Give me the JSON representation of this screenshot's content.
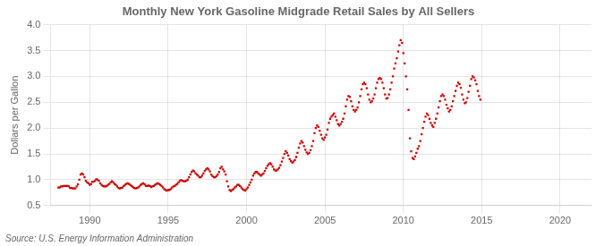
{
  "chart_data": {
    "type": "scatter",
    "title": "Monthly New York Gasoline Midgrade Retail Sales by All Sellers",
    "ylabel": "Dollars per Gallon",
    "annotations": [
      "Source: U.S. Energy Information Administration"
    ],
    "color": "#cc0000",
    "marker": "square",
    "grid": true,
    "xlim": [
      1987.5,
      2022
    ],
    "ylim": [
      0.5,
      4.0
    ],
    "xticks": [
      1990,
      1995,
      2000,
      2005,
      2010,
      2015,
      2020
    ],
    "yticks": [
      0.5,
      {
        "value": 1.0,
        "label": "1.0"
      },
      1.5,
      {
        "value": 2.0,
        "label": "2.0"
      },
      2.5,
      {
        "value": 3.0,
        "label": "3.0"
      },
      3.5,
      {
        "value": 4.0,
        "label": "4.0"
      }
    ],
    "x": [
      1988,
      1988.0833333333333,
      1988.1666666666667,
      1988.25,
      1988.3333333333333,
      1988.4166666666667,
      1988.5,
      1988.5833333333333,
      1988.6666666666667,
      1988.75,
      1988.8333333333333,
      1988.9166666666667,
      1989,
      1989.0833333333333,
      1989.1666666666667,
      1989.25,
      1989.3333333333333,
      1989.4166666666667,
      1989.5,
      1989.5833333333333,
      1989.6666666666667,
      1989.75,
      1989.8333333333333,
      1989.9166666666667,
      1990,
      1990.0833333333333,
      1990.1666666666667,
      1990.25,
      1990.3333333333333,
      1990.4166666666667,
      1990.5,
      1990.5833333333333,
      1990.6666666666667,
      1990.75,
      1990.8333333333333,
      1990.9166666666667,
      1991,
      1991.0833333333333,
      1991.1666666666667,
      1991.25,
      1991.3333333333333,
      1991.4166666666667,
      1991.5,
      1991.5833333333333,
      1991.6666666666667,
      1991.75,
      1991.8333333333333,
      1991.9166666666667,
      1992,
      1992.0833333333333,
      1992.1666666666667,
      1992.25,
      1992.3333333333333,
      1992.4166666666667,
      1992.5,
      1992.5833333333333,
      1992.6666666666667,
      1992.75,
      1992.8333333333333,
      1992.9166666666667,
      1993,
      1993.0833333333333,
      1993.1666666666667,
      1993.25,
      1993.3333333333333,
      1993.4166666666667,
      1993.5,
      1993.5833333333333,
      1993.6666666666667,
      1993.75,
      1993.8333333333333,
      1993.9166666666667,
      1994,
      1994.0833333333333,
      1994.1666666666667,
      1994.25,
      1994.3333333333333,
      1994.4166666666667,
      1994.5,
      1994.5833333333333,
      1994.6666666666667,
      1994.75,
      1994.8333333333333,
      1994.9166666666667,
      1995,
      1995.0833333333333,
      1995.1666666666667,
      1995.25,
      1995.3333333333333,
      1995.4166666666667,
      1995.5,
      1995.5833333333333,
      1995.6666666666667,
      1995.75,
      1995.8333333333333,
      1995.9166666666667,
      1996,
      1996.0833333333333,
      1996.1666666666667,
      1996.25,
      1996.3333333333333,
      1996.4166666666667,
      1996.5,
      1996.5833333333333,
      1996.6666666666667,
      1996.75,
      1996.8333333333333,
      1996.9166666666667,
      1997,
      1997.0833333333333,
      1997.1666666666667,
      1997.25,
      1997.3333333333333,
      1997.4166666666667,
      1997.5,
      1997.5833333333333,
      1997.6666666666667,
      1997.75,
      1997.8333333333333,
      1997.9166666666667,
      1998,
      1998.0833333333333,
      1998.1666666666667,
      1998.25,
      1998.3333333333333,
      1998.4166666666667,
      1998.5,
      1998.5833333333333,
      1998.6666666666667,
      1998.75,
      1998.8333333333333,
      1998.9166666666667,
      1999,
      1999.0833333333333,
      1999.1666666666667,
      1999.25,
      1999.3333333333333,
      1999.4166666666667,
      1999.5,
      1999.5833333333333,
      1999.6666666666667,
      1999.75,
      1999.8333333333333,
      1999.9166666666667,
      2000,
      2000.0833333333333,
      2000.1666666666667,
      2000.25,
      2000.3333333333333,
      2000.4166666666667,
      2000.5,
      2000.5833333333333,
      2000.6666666666667,
      2000.75,
      2000.8333333333333,
      2000.9166666666667,
      2001,
      2001.0833333333333,
      2001.1666666666667,
      2001.25,
      2001.3333333333333,
      2001.4166666666667,
      2001.5,
      2001.5833333333333,
      2001.6666666666667,
      2001.75,
      2001.8333333333333,
      2001.9166666666667,
      2002,
      2002.0833333333333,
      2002.1666666666667,
      2002.25,
      2002.3333333333333,
      2002.4166666666667,
      2002.5,
      2002.5833333333333,
      2002.6666666666667,
      2002.75,
      2002.8333333333333,
      2002.9166666666667,
      2003,
      2003.0833333333333,
      2003.1666666666667,
      2003.25,
      2003.3333333333333,
      2003.4166666666667,
      2003.5,
      2003.5833333333333,
      2003.6666666666667,
      2003.75,
      2003.8333333333333,
      2003.9166666666667,
      2004,
      2004.0833333333333,
      2004.1666666666667,
      2004.25,
      2004.3333333333333,
      2004.4166666666667,
      2004.5,
      2004.5833333333333,
      2004.6666666666667,
      2004.75,
      2004.8333333333333,
      2004.9166666666667,
      2005,
      2005.0833333333333,
      2005.1666666666667,
      2005.25,
      2005.3333333333333,
      2005.4166666666667,
      2005.5,
      2005.5833333333333,
      2005.6666666666667,
      2005.75,
      2005.8333333333333,
      2005.9166666666667,
      2006,
      2006.0833333333333,
      2006.1666666666667,
      2006.25,
      2006.3333333333333,
      2006.4166666666667,
      2006.5,
      2006.5833333333333,
      2006.6666666666667,
      2006.75,
      2006.8333333333333,
      2006.9166666666667,
      2007,
      2007.0833333333333,
      2007.1666666666667,
      2007.25,
      2007.3333333333333,
      2007.4166666666667,
      2007.5,
      2007.5833333333333,
      2007.6666666666667,
      2007.75,
      2007.8333333333333,
      2007.9166666666667,
      2008,
      2008.0833333333333,
      2008.1666666666667,
      2008.25,
      2008.3333333333333,
      2008.4166666666667,
      2008.5,
      2008.5833333333333,
      2008.6666666666667,
      2008.75,
      2008.8333333333333,
      2008.9166666666667,
      2009,
      2009.0833333333333,
      2009.1666666666667,
      2009.25,
      2009.3333333333333,
      2009.4166666666667,
      2009.5,
      2009.5833333333333,
      2009.6666666666667,
      2009.75,
      2009.8333333333333,
      2009.9166666666667,
      2010,
      2010.0833333333333,
      2010.1666666666667,
      2010.25,
      2010.3333333333333,
      2010.4166666666667,
      2010.5,
      2010.5833333333333,
      2010.6666666666667,
      2010.75,
      2010.8333333333333,
      2010.9166666666667,
      2011,
      2011.0833333333333,
      2011.1666666666667,
      2011.25,
      2011.3333333333333,
      2011.4166666666667,
      2011.5,
      2011.5833333333333,
      2011.6666666666667,
      2011.75,
      2011.8333333333333,
      2011.9166666666667,
      2012,
      2012.0833333333333,
      2012.1666666666667,
      2012.25,
      2012.3333333333333,
      2012.4166666666667,
      2012.5,
      2012.5833333333333,
      2012.6666666666667,
      2012.75,
      2012.8333333333333,
      2012.9166666666667,
      2013,
      2013.0833333333333,
      2013.1666666666667,
      2013.25,
      2013.3333333333333,
      2013.4166666666667,
      2013.5,
      2013.5833333333333,
      2013.6666666666667,
      2013.75,
      2013.8333333333333,
      2013.9166666666667,
      2014,
      2014.0833333333333,
      2014.1666666666667,
      2014.25,
      2014.3333333333333,
      2014.4166666666667,
      2014.5,
      2014.5833333333333,
      2014.6666666666667,
      2014.75,
      2014.8333333333333,
      2014.9166666666667
    ],
    "values": [
      0.85,
      0.85,
      0.87,
      0.87,
      0.88,
      0.88,
      0.88,
      0.88,
      0.87,
      0.84,
      0.84,
      0.83,
      0.83,
      0.83,
      0.87,
      0.91,
      1.0,
      1.1,
      1.12,
      1.1,
      1.05,
      0.98,
      0.95,
      0.93,
      0.9,
      0.92,
      0.96,
      0.96,
      0.98,
      1.01,
      1.0,
      0.98,
      0.93,
      0.9,
      0.88,
      0.87,
      0.87,
      0.88,
      0.9,
      0.92,
      0.95,
      0.97,
      0.95,
      0.92,
      0.9,
      0.87,
      0.84,
      0.83,
      0.84,
      0.85,
      0.88,
      0.9,
      0.92,
      0.93,
      0.92,
      0.9,
      0.88,
      0.86,
      0.84,
      0.83,
      0.84,
      0.85,
      0.87,
      0.9,
      0.92,
      0.93,
      0.91,
      0.88,
      0.88,
      0.89,
      0.88,
      0.86,
      0.87,
      0.88,
      0.9,
      0.92,
      0.93,
      0.92,
      0.9,
      0.88,
      0.85,
      0.82,
      0.8,
      0.79,
      0.8,
      0.8,
      0.82,
      0.85,
      0.87,
      0.88,
      0.9,
      0.92,
      0.95,
      0.98,
      0.99,
      0.98,
      0.97,
      0.97,
      0.98,
      1.0,
      1.05,
      1.1,
      1.15,
      1.18,
      1.16,
      1.12,
      1.1,
      1.08,
      1.05,
      1.05,
      1.08,
      1.12,
      1.17,
      1.2,
      1.22,
      1.2,
      1.16,
      1.1,
      1.07,
      1.05,
      1.05,
      1.07,
      1.1,
      1.15,
      1.22,
      1.25,
      1.2,
      1.16,
      1.1,
      0.97,
      0.87,
      0.8,
      0.78,
      0.8,
      0.82,
      0.85,
      0.87,
      0.9,
      0.9,
      0.88,
      0.85,
      0.82,
      0.8,
      0.79,
      0.82,
      0.85,
      0.9,
      0.95,
      1.0,
      1.08,
      1.12,
      1.15,
      1.15,
      1.12,
      1.1,
      1.08,
      1.1,
      1.12,
      1.17,
      1.22,
      1.27,
      1.3,
      1.32,
      1.3,
      1.25,
      1.2,
      1.18,
      1.18,
      1.2,
      1.23,
      1.28,
      1.35,
      1.42,
      1.5,
      1.55,
      1.52,
      1.47,
      1.4,
      1.36,
      1.33,
      1.35,
      1.38,
      1.44,
      1.52,
      1.62,
      1.7,
      1.75,
      1.72,
      1.65,
      1.58,
      1.53,
      1.5,
      1.52,
      1.57,
      1.65,
      1.75,
      1.9,
      2.0,
      2.05,
      2.02,
      1.95,
      1.87,
      1.8,
      1.77,
      1.82,
      1.87,
      1.97,
      2.1,
      2.18,
      2.22,
      2.25,
      2.28,
      2.22,
      2.15,
      2.08,
      2.05,
      2.08,
      2.12,
      2.18,
      2.28,
      2.42,
      2.55,
      2.62,
      2.6,
      2.52,
      2.42,
      2.35,
      2.32,
      2.35,
      2.4,
      2.5,
      2.62,
      2.75,
      2.85,
      2.88,
      2.85,
      2.77,
      2.65,
      2.55,
      2.5,
      2.52,
      2.57,
      2.65,
      2.77,
      2.88,
      2.95,
      2.97,
      2.95,
      2.88,
      2.77,
      2.65,
      2.57,
      2.58,
      2.65,
      2.75,
      2.88,
      3.0,
      3.15,
      3.25,
      3.35,
      3.48,
      3.6,
      3.7,
      3.65,
      3.45,
      3.25,
      3.0,
      2.75,
      2.35,
      1.8,
      1.55,
      1.42,
      1.4,
      1.45,
      1.52,
      1.6,
      1.65,
      1.75,
      1.88,
      2.0,
      2.12,
      2.22,
      2.28,
      2.25,
      2.18,
      2.1,
      2.05,
      2.02,
      2.1,
      2.18,
      2.28,
      2.4,
      2.52,
      2.62,
      2.65,
      2.62,
      2.55,
      2.45,
      2.38,
      2.32,
      2.35,
      2.42,
      2.52,
      2.62,
      2.72,
      2.82,
      2.88,
      2.85,
      2.78,
      2.65,
      2.55,
      2.48,
      2.5,
      2.58,
      2.7,
      2.82,
      2.95,
      3.0,
      2.98,
      2.92,
      2.85,
      2.72,
      2.62,
      2.55
    ]
  }
}
